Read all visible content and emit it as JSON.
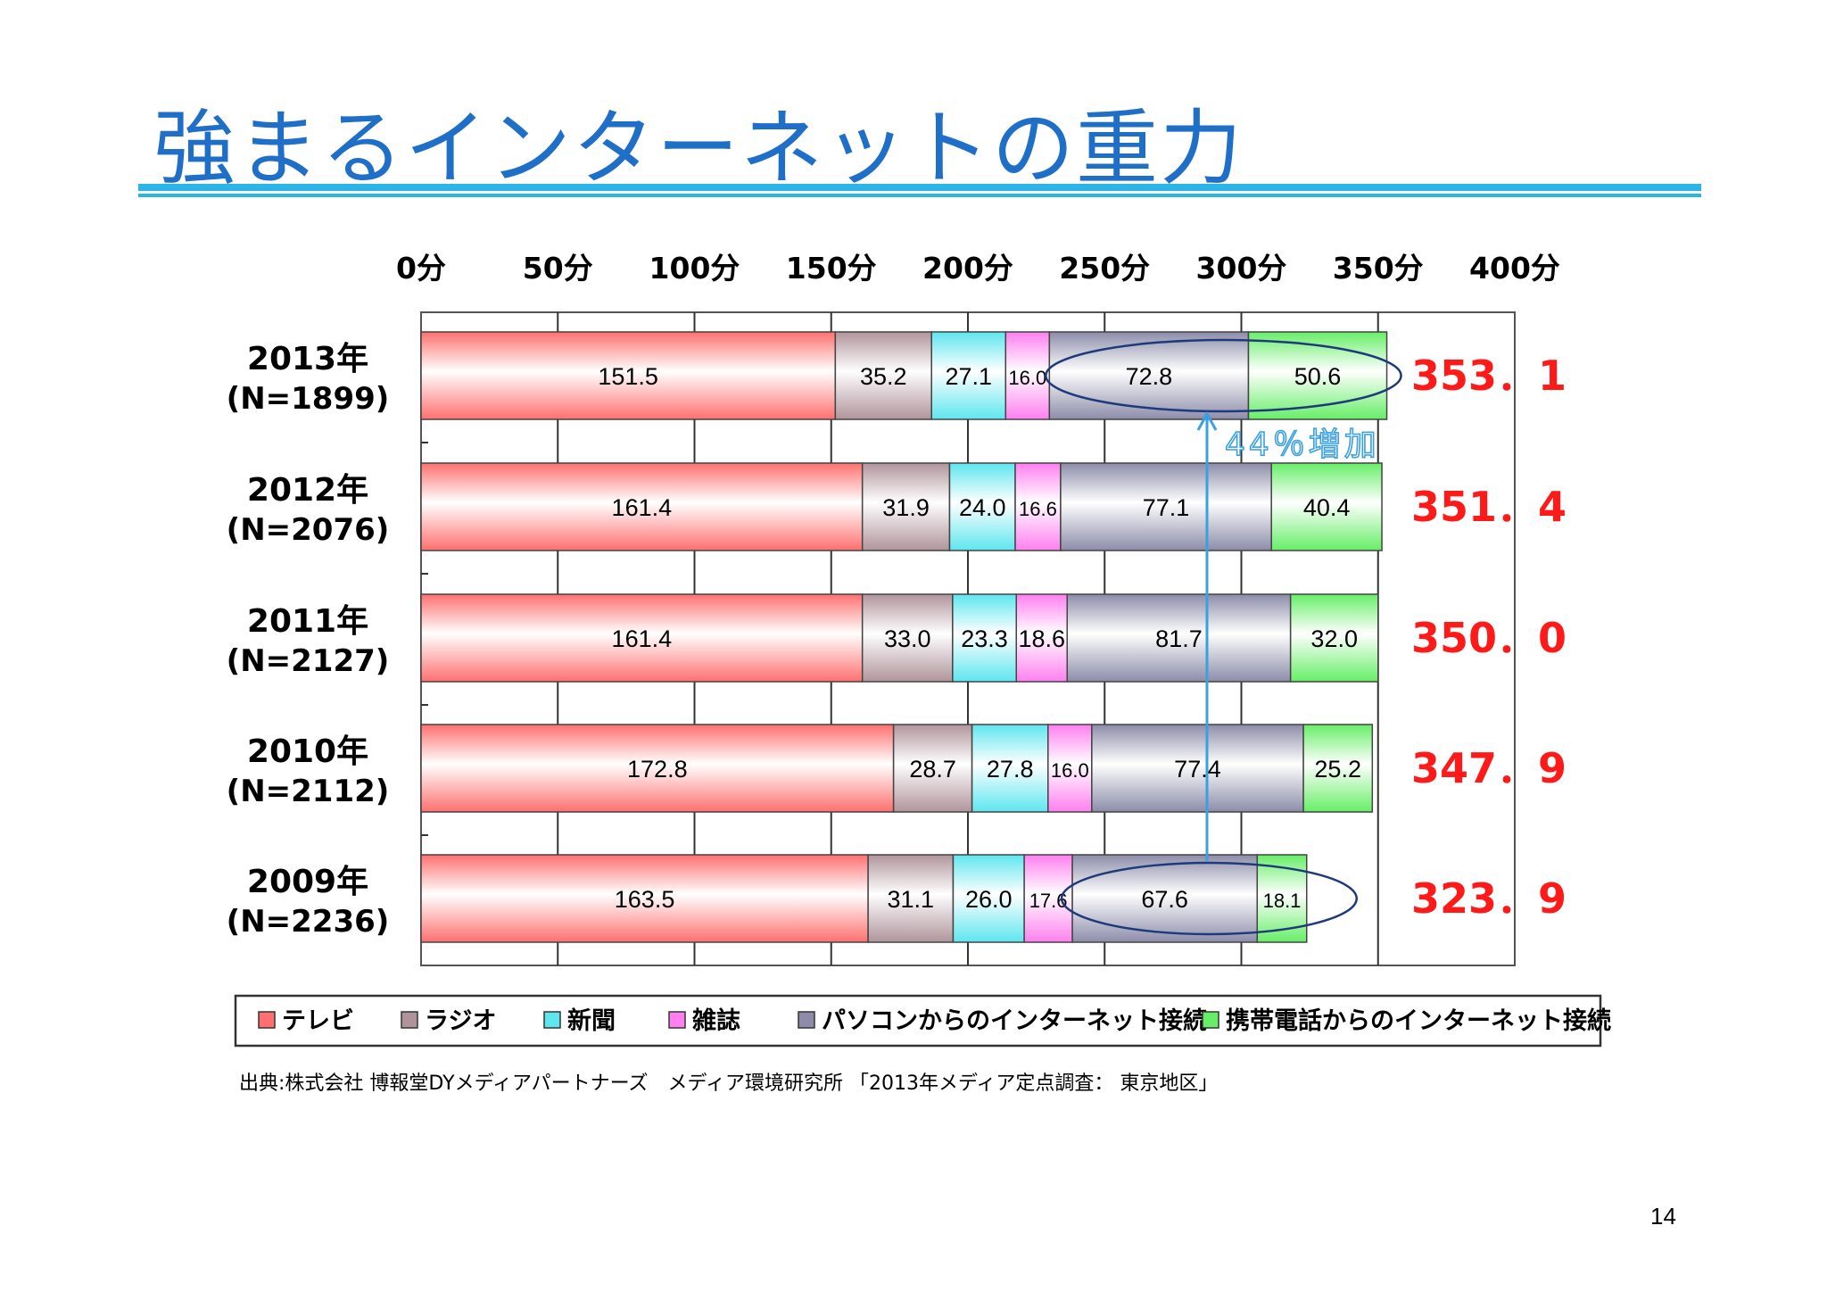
{
  "slide": {
    "title": "強まるインターネットの重力",
    "source": "出典:株式会社 博報堂DYメディアパートナーズ　メディア環境研究所 「2013年メディア定点調査： 東京地区」",
    "page_number": "14",
    "annotation": "44％増加"
  },
  "colors": {
    "title": "#1f6fc9",
    "rule": "#2bb5e6",
    "total_label": "#ff1a1a",
    "arrow": "#3aa0e0"
  },
  "chart_data": {
    "type": "bar",
    "orientation": "horizontal",
    "stacked": true,
    "xlim": [
      0,
      400
    ],
    "x_ticks": [
      "0分",
      "50分",
      "100分",
      "150分",
      "200分",
      "250分",
      "300分",
      "350分",
      "400分"
    ],
    "categories": [
      [
        "2013年",
        "(N=1899)"
      ],
      [
        "2012年",
        "(N=2076)"
      ],
      [
        "2011年",
        "(N=2127)"
      ],
      [
        "2010年",
        "(N=2112)"
      ],
      [
        "2009年",
        "(N=2236)"
      ]
    ],
    "series": [
      {
        "name": "テレビ",
        "color": "#ff6f6f",
        "values": [
          151.5,
          161.4,
          161.4,
          172.8,
          163.5
        ],
        "labels": [
          "151.5",
          "161.4",
          "161.4",
          "172.8",
          "163.5"
        ]
      },
      {
        "name": "ラジオ",
        "color": "#b0949c",
        "values": [
          35.2,
          31.9,
          33.0,
          28.7,
          31.1
        ],
        "labels": [
          "35.2",
          "31.9",
          "33.0",
          "28.7",
          "31.1"
        ]
      },
      {
        "name": "新聞",
        "color": "#5ee6ef",
        "values": [
          27.1,
          24.0,
          23.3,
          27.8,
          26.0
        ],
        "labels": [
          "27.1",
          "24.0",
          "23.3",
          "27.8",
          "26.0"
        ]
      },
      {
        "name": "雑誌",
        "color": "#ff7ff0",
        "values": [
          16.0,
          16.6,
          18.6,
          16.0,
          17.6
        ],
        "labels": [
          "16.0",
          "16.6",
          "18.6",
          "16.0",
          "17.6"
        ]
      },
      {
        "name": "パソコンからのインターネット接続",
        "color": "#8c8caa",
        "values": [
          72.8,
          77.1,
          81.7,
          77.4,
          67.6
        ],
        "labels": [
          "72.8",
          "77.1",
          "81.7",
          "77.4",
          "67.6"
        ]
      },
      {
        "name": "携帯電話からのインターネット接続",
        "color": "#66ee66",
        "values": [
          50.6,
          40.4,
          32.0,
          25.2,
          18.1
        ],
        "labels": [
          "50.6",
          "40.4",
          "32.0",
          "25.2",
          "18.1"
        ]
      }
    ],
    "totals": [
      "353．1",
      "351．4",
      "350．0",
      "347．9",
      "323．9"
    ],
    "grid": true,
    "legend": "bottom"
  }
}
